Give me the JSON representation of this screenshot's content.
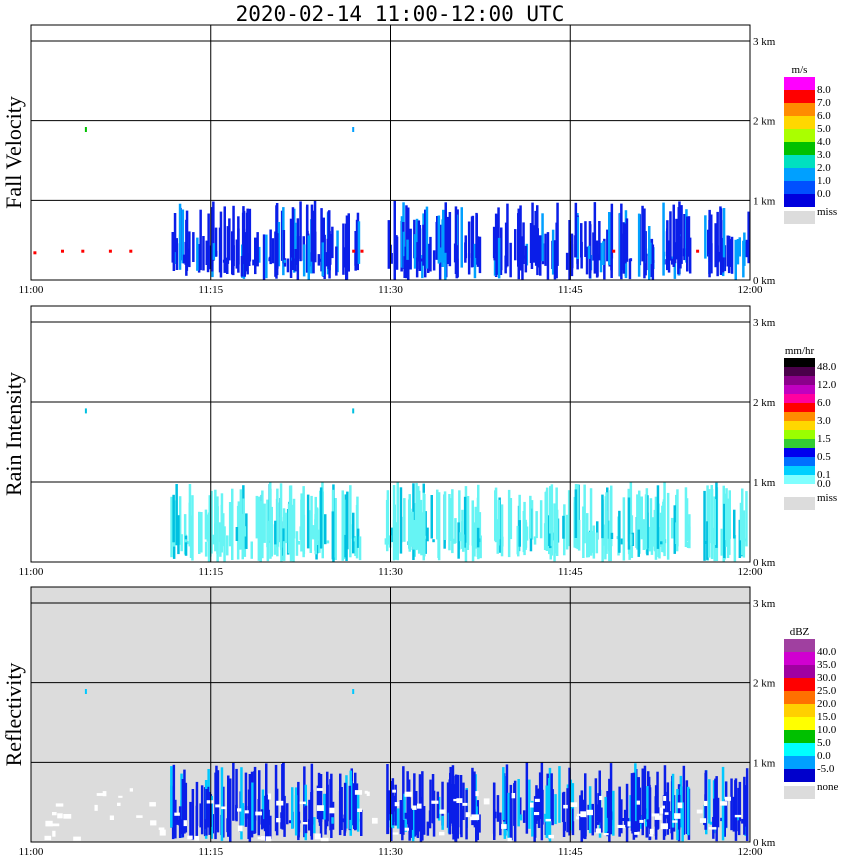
{
  "title": "2020-02-14   11:00-12:00 UTC",
  "chart_data": [
    {
      "type": "heatmap",
      "ylabel": "Fall Velocity",
      "x_ticks": [
        "11:00",
        "11:15",
        "11:30",
        "11:45",
        "12:00"
      ],
      "height_ticks": [
        "3 km",
        "2 km",
        "1 km",
        "0 km"
      ],
      "legend": {
        "unit": "m/s",
        "labels": [
          "8.0",
          "7.0",
          "6.0",
          "5.0",
          "4.0",
          "3.0",
          "2.0",
          "1.0",
          "0.0"
        ],
        "colors": [
          "#ff00ff",
          "#ff0000",
          "#ff8c00",
          "#ffd700",
          "#aaff00",
          "#00c000",
          "#00e0c0",
          "#00a0ff",
          "#0050ff",
          "#0000dd"
        ],
        "miss_label": "miss",
        "miss_color": "#dcdcdc"
      },
      "background": "#ffffff",
      "echo_color": "#0a1ee8",
      "echo_accent": "#00a0ff",
      "hot_color": "#ff0000"
    },
    {
      "type": "heatmap",
      "ylabel": "Rain Intensity",
      "x_ticks": [
        "11:00",
        "11:15",
        "11:30",
        "11:45",
        "12:00"
      ],
      "height_ticks": [
        "3 km",
        "2 km",
        "1 km",
        "0 km"
      ],
      "legend": {
        "unit": "mm/hr",
        "labels": [
          "48.0",
          "",
          "12.0",
          "",
          "6.0",
          "",
          "3.0",
          "",
          "1.5",
          "",
          "0.5",
          "",
          "0.1",
          "0.0"
        ],
        "colors": [
          "#000000",
          "#4a004a",
          "#8b008b",
          "#c000c0",
          "#ff00a0",
          "#ff0000",
          "#ff8c00",
          "#ffd700",
          "#9aff00",
          "#33cc33",
          "#0000ee",
          "#0070ff",
          "#00d0ff",
          "#80ffff",
          "#ffffff"
        ],
        "miss_label": "miss",
        "miss_color": "#dcdcdc"
      },
      "background": "#ffffff",
      "echo_color": "#66f4f4",
      "echo_accent": "#00c0e0",
      "hot_color": "#66f4f4"
    },
    {
      "type": "heatmap",
      "ylabel": "Reflectivity",
      "x_ticks": [
        "11:00",
        "11:15",
        "11:30",
        "11:45",
        "12:00"
      ],
      "height_ticks": [
        "3 km",
        "2 km",
        "1 km",
        "0 km"
      ],
      "legend": {
        "unit": "dBZ",
        "labels": [
          "40.0",
          "35.0",
          "30.0",
          "25.0",
          "20.0",
          "15.0",
          "10.0",
          "5.0",
          "0.0",
          "-5.0"
        ],
        "colors": [
          "#a040a0",
          "#d000d0",
          "#a000a0",
          "#ff0000",
          "#ff7000",
          "#ffd000",
          "#ffff00",
          "#00c000",
          "#00ffff",
          "#00a0ff",
          "#0000cc"
        ],
        "miss_label": "none",
        "miss_color": "#dcdcdc"
      },
      "background": "#dcdcdc",
      "echo_color": "#0a1ee8",
      "echo_accent": "#00c8ff",
      "hot_color": "#ffffff"
    }
  ]
}
